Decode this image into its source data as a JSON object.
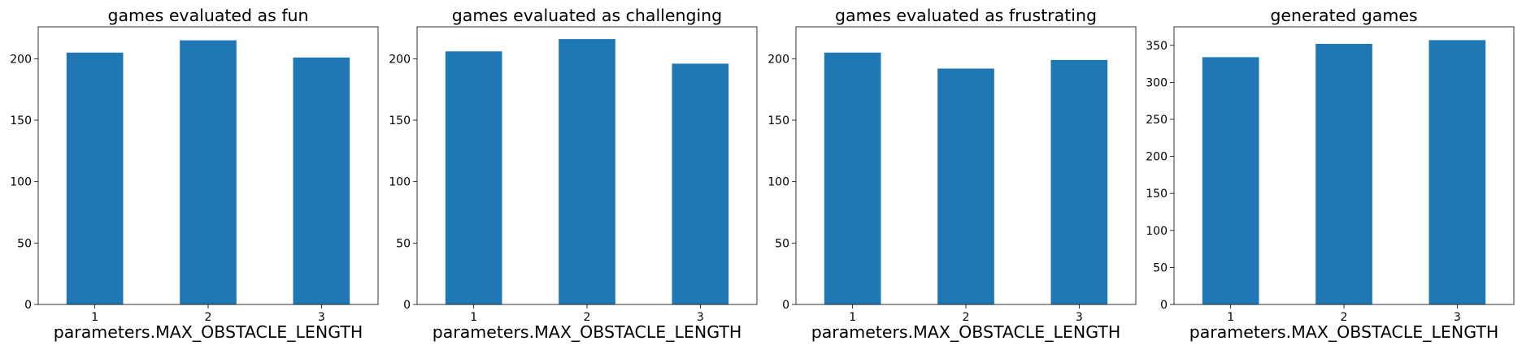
{
  "chart_data": [
    {
      "type": "bar",
      "title": "games evaluated as fun",
      "xlabel": "parameters.MAX_OBSTACLE_LENGTH",
      "ylabel": "",
      "categories": [
        "1",
        "2",
        "3"
      ],
      "values": [
        205,
        215,
        201
      ],
      "ylim": [
        0,
        226
      ],
      "yticks": [
        0,
        50,
        100,
        150,
        200
      ],
      "grid": false,
      "color": "#1f77b4"
    },
    {
      "type": "bar",
      "title": "games evaluated as challenging",
      "xlabel": "parameters.MAX_OBSTACLE_LENGTH",
      "ylabel": "",
      "categories": [
        "1",
        "2",
        "3"
      ],
      "values": [
        206,
        216,
        196
      ],
      "ylim": [
        0,
        226
      ],
      "yticks": [
        0,
        50,
        100,
        150,
        200
      ],
      "grid": false,
      "color": "#1f77b4"
    },
    {
      "type": "bar",
      "title": "games evaluated as frustrating",
      "xlabel": "parameters.MAX_OBSTACLE_LENGTH",
      "ylabel": "",
      "categories": [
        "1",
        "2",
        "3"
      ],
      "values": [
        205,
        192,
        199
      ],
      "ylim": [
        0,
        226
      ],
      "yticks": [
        0,
        50,
        100,
        150,
        200
      ],
      "grid": false,
      "color": "#1f77b4"
    },
    {
      "type": "bar",
      "title": "generated games",
      "xlabel": "parameters.MAX_OBSTACLE_LENGTH",
      "ylabel": "",
      "categories": [
        "1",
        "2",
        "3"
      ],
      "values": [
        334,
        352,
        357
      ],
      "ylim": [
        0,
        375
      ],
      "yticks": [
        0,
        50,
        100,
        150,
        200,
        250,
        300,
        350
      ],
      "grid": false,
      "color": "#1f77b4"
    }
  ]
}
